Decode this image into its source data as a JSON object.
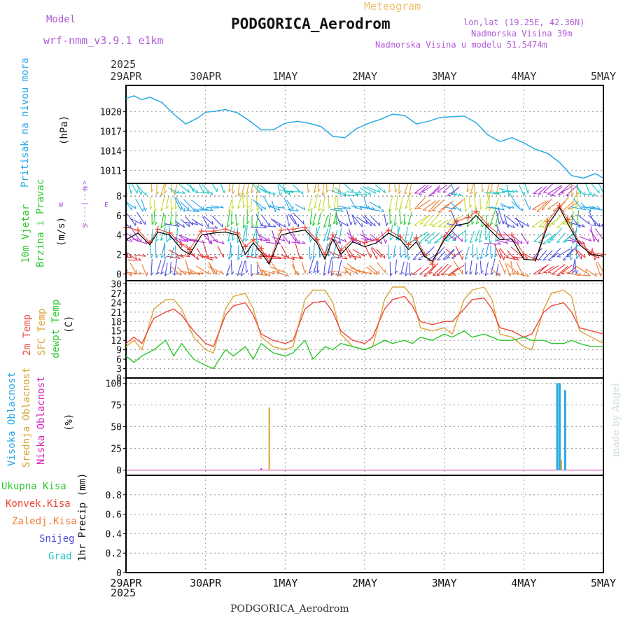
{
  "header": {
    "model_label": "Model",
    "model_name": "wrf-nmm_v3.9.1  e1km",
    "meteogram_label": "Meteogram",
    "station_title": "PODGORICA_Aerodrom",
    "lonlat": "lon,lat (19.25E, 42.36N)",
    "elevation": "Nadmorska Visina 39m",
    "model_elevation": "Nadmorska Visina u modelu 51.5474m",
    "footer_title": "PODGORICA_Aerodrom",
    "credit": "made by Angel"
  },
  "time_axis": {
    "year": "2025",
    "dates": [
      "29APR",
      "30APR",
      "1MAY",
      "2MAY",
      "3MAY",
      "4MAY",
      "5MAY"
    ]
  },
  "panel_labels": {
    "pressure": {
      "title": "Pritisak na nivou mora",
      "unit": "(hPa)"
    },
    "wind": {
      "title1": "10m Vjetar",
      "title2": "Brzina i Pravac",
      "unit": "(m/s)",
      "compass_top": "N",
      "compass_left": "W",
      "compass_right": "E",
      "compass_bottom": "S",
      "compass_axis": "<----|---->"
    },
    "temp": {
      "t2m": "2m Temp",
      "sfc": "SFC Temp",
      "dew": "dewpt Temp",
      "unit": "(C)"
    },
    "cloud": {
      "high": "Visoka Oblacnost",
      "mid": "Srednja Oblacnost",
      "low": "Niska Oblacnost",
      "unit": "(%)"
    },
    "precip": {
      "unit": "1hr Precip (mm)"
    }
  },
  "precip_legend": [
    "Ukupna Kisa",
    "Konvek.Kisa",
    "Zaledj.Kisa",
    "Snijeg",
    "Grad"
  ],
  "colors": {
    "pressure": "#2aa9e6",
    "wind_speed": "#000000",
    "wind_gust": "#e8422f",
    "t2m": "#ef4a3c",
    "sfc": "#dba63a",
    "dewpoint": "#2ec92e",
    "high_cloud": "#2aa9e6",
    "mid_cloud": "#d4a530",
    "low_cloud": "#d423b4",
    "rain": "#2ec92e",
    "conv": "#e8422f",
    "frz": "#f07a30",
    "snow": "#5050e0",
    "hail": "#1ec6c6",
    "title_purple": "#b05ad6",
    "meteogram_gold": "#f0c070"
  },
  "chart_data": [
    {
      "type": "line",
      "name": "pressure",
      "ylabel": "Pritisak na nivou mora (hPa)",
      "x_unit": "days since 29APR 00UTC",
      "ylim": [
        1009,
        1024
      ],
      "yticks": [
        1011,
        1014,
        1017,
        1020
      ],
      "grid": true,
      "x": [
        0,
        0.1,
        0.2,
        0.3,
        0.45,
        0.6,
        0.75,
        0.9,
        1.0,
        1.1,
        1.25,
        1.4,
        1.55,
        1.7,
        1.85,
        2.0,
        2.15,
        2.3,
        2.45,
        2.6,
        2.75,
        2.9,
        3.05,
        3.2,
        3.35,
        3.5,
        3.65,
        3.8,
        3.95,
        4.1,
        4.25,
        4.4,
        4.55,
        4.7,
        4.85,
        5.0,
        5.15,
        5.3,
        5.45,
        5.6,
        5.75,
        5.9,
        6.0
      ],
      "y": [
        1022.0,
        1022.4,
        1021.8,
        1022.2,
        1021.4,
        1019.6,
        1018.1,
        1019.0,
        1019.9,
        1020.0,
        1020.3,
        1019.8,
        1018.6,
        1017.2,
        1017.2,
        1018.2,
        1018.5,
        1018.2,
        1017.7,
        1016.2,
        1016.0,
        1017.4,
        1018.2,
        1018.8,
        1019.6,
        1019.4,
        1018.1,
        1018.5,
        1019.1,
        1019.2,
        1019.3,
        1018.3,
        1016.4,
        1015.4,
        1016.0,
        1015.2,
        1014.2,
        1013.6,
        1012.2,
        1010.2,
        1009.8,
        1010.5,
        1009.8
      ]
    },
    {
      "type": "line",
      "name": "wind",
      "ylabel": "10m Vjetar Brzina i Pravac (m/s)",
      "x_unit": "days since 29APR 00UTC",
      "ylim": [
        -0.7,
        9.3
      ],
      "yticks": [
        0,
        2,
        4,
        6,
        8
      ],
      "grid": true,
      "series": [
        {
          "name": "speed",
          "x": [
            0,
            0.15,
            0.3,
            0.4,
            0.55,
            0.7,
            0.8,
            0.95,
            1.1,
            1.25,
            1.4,
            1.5,
            1.6,
            1.7,
            1.8,
            1.95,
            2.1,
            2.25,
            2.4,
            2.5,
            2.6,
            2.7,
            2.85,
            3.0,
            3.15,
            3.3,
            3.45,
            3.55,
            3.65,
            3.75,
            3.85,
            4.0,
            4.15,
            4.3,
            4.4,
            4.55,
            4.7,
            4.85,
            5.0,
            5.15,
            5.3,
            5.45,
            5.55,
            5.7,
            5.85,
            6.0
          ],
          "y": [
            3.5,
            4.2,
            3.0,
            4.3,
            4.0,
            2.5,
            2.0,
            4.0,
            4.2,
            4.3,
            4.0,
            2.0,
            3.2,
            2.2,
            1.0,
            4.0,
            4.3,
            4.5,
            3.2,
            1.5,
            3.6,
            2.0,
            3.3,
            2.8,
            3.2,
            4.2,
            3.5,
            2.5,
            3.3,
            1.8,
            1.3,
            3.5,
            5.0,
            5.2,
            6.0,
            4.7,
            3.5,
            3.6,
            1.5,
            1.4,
            5.0,
            6.8,
            5.2,
            3.0,
            2.0,
            1.8
          ]
        },
        {
          "name": "gust",
          "x": [
            0,
            0.15,
            0.3,
            0.4,
            0.55,
            0.7,
            0.8,
            0.95,
            1.1,
            1.25,
            1.4,
            1.5,
            1.6,
            1.7,
            1.8,
            1.95,
            2.1,
            2.25,
            2.4,
            2.5,
            2.6,
            2.7,
            2.85,
            3.0,
            3.15,
            3.3,
            3.45,
            3.55,
            3.65,
            3.75,
            3.85,
            4.0,
            4.15,
            4.3,
            4.4,
            4.55,
            4.7,
            4.85,
            5.0,
            5.15,
            5.3,
            5.45,
            5.55,
            5.7,
            5.85,
            6.0
          ],
          "y": [
            4.8,
            4.5,
            3.2,
            4.6,
            4.2,
            3.0,
            2.5,
            4.4,
            4.4,
            4.6,
            4.2,
            2.8,
            3.5,
            2.6,
            1.2,
            4.5,
            4.6,
            4.8,
            3.5,
            2.0,
            4.0,
            2.4,
            3.6,
            3.2,
            3.5,
            4.5,
            3.8,
            3.0,
            3.7,
            2.0,
            1.0,
            3.8,
            5.4,
            5.8,
            6.4,
            5.0,
            4.0,
            4.0,
            2.0,
            1.5,
            5.4,
            7.0,
            5.6,
            3.2,
            2.2,
            2.0
          ]
        }
      ]
    },
    {
      "type": "line",
      "name": "temperature",
      "ylabel": "Temp (C)",
      "x_unit": "days since 29APR 00UTC",
      "ylim": [
        0,
        31
      ],
      "yticks": [
        0,
        3,
        6,
        9,
        12,
        15,
        18,
        21,
        24,
        27,
        30
      ],
      "grid": true,
      "series": [
        {
          "name": "2m Temp",
          "x": [
            0,
            0.1,
            0.2,
            0.35,
            0.5,
            0.6,
            0.7,
            0.85,
            1.0,
            1.1,
            1.25,
            1.35,
            1.5,
            1.6,
            1.7,
            1.85,
            2.0,
            2.1,
            2.25,
            2.35,
            2.5,
            2.6,
            2.7,
            2.85,
            3.0,
            3.1,
            3.25,
            3.35,
            3.5,
            3.6,
            3.7,
            3.85,
            4.0,
            4.1,
            4.25,
            4.35,
            4.5,
            4.6,
            4.7,
            4.85,
            5.0,
            5.1,
            5.25,
            5.35,
            5.5,
            5.6,
            5.7,
            5.85,
            6.0
          ],
          "y": [
            11,
            13,
            11,
            19,
            21,
            22,
            20,
            15,
            11,
            10,
            20,
            23,
            24,
            20,
            14,
            12,
            11,
            12,
            22,
            24,
            24.5,
            21,
            15,
            12,
            11,
            13,
            22,
            25,
            26,
            23,
            18,
            17,
            18,
            18,
            22,
            25,
            25.5,
            22,
            16,
            15,
            13,
            14,
            21,
            23,
            24,
            21,
            16,
            15,
            14
          ]
        },
        {
          "name": "SFC Temp",
          "x": [
            0,
            0.1,
            0.2,
            0.35,
            0.5,
            0.6,
            0.7,
            0.85,
            1.0,
            1.1,
            1.25,
            1.35,
            1.5,
            1.6,
            1.7,
            1.85,
            2.0,
            2.1,
            2.25,
            2.35,
            2.5,
            2.6,
            2.7,
            2.85,
            3.0,
            3.1,
            3.25,
            3.35,
            3.5,
            3.6,
            3.7,
            3.85,
            4.0,
            4.1,
            4.25,
            4.35,
            4.5,
            4.6,
            4.7,
            4.85,
            5.0,
            5.1,
            5.25,
            5.35,
            5.5,
            5.6,
            5.7,
            5.85,
            6.0
          ],
          "y": [
            10,
            12,
            9,
            22,
            25,
            25,
            22,
            13,
            9,
            8,
            22,
            26,
            27,
            22,
            13,
            10,
            9,
            10,
            25,
            28,
            28,
            24,
            14,
            10,
            9,
            10,
            25,
            29,
            29,
            26,
            16,
            15,
            16,
            14,
            25,
            28,
            29,
            25,
            14,
            13,
            10,
            9,
            22,
            27,
            28,
            26,
            15,
            13,
            11
          ]
        },
        {
          "name": "dewpt Temp",
          "x": [
            0,
            0.1,
            0.2,
            0.35,
            0.5,
            0.6,
            0.7,
            0.85,
            1.0,
            1.1,
            1.25,
            1.35,
            1.5,
            1.6,
            1.7,
            1.85,
            2.0,
            2.1,
            2.25,
            2.35,
            2.5,
            2.6,
            2.7,
            2.85,
            3.0,
            3.1,
            3.25,
            3.35,
            3.5,
            3.6,
            3.7,
            3.85,
            4.0,
            4.1,
            4.25,
            4.35,
            4.5,
            4.6,
            4.7,
            4.85,
            5.0,
            5.1,
            5.25,
            5.35,
            5.5,
            5.6,
            5.7,
            5.85,
            6.0
          ],
          "y": [
            7,
            5,
            7,
            9,
            12,
            7,
            11,
            6,
            4,
            3,
            9,
            7,
            10,
            6,
            11,
            8,
            7,
            8,
            12,
            6,
            10,
            9,
            11,
            10,
            9,
            10,
            12,
            11,
            12,
            11,
            13,
            12,
            14,
            13,
            15,
            13,
            14,
            13,
            12,
            12,
            13,
            12,
            12,
            11,
            11,
            12,
            11,
            10,
            10
          ]
        }
      ]
    },
    {
      "type": "bar",
      "name": "cloud",
      "ylabel": "Oblacnost (%)",
      "x_unit": "days since 29APR 00UTC",
      "ylim": [
        -6,
        106
      ],
      "yticks": [
        0,
        25,
        50,
        75,
        100
      ],
      "grid": true,
      "series": [
        {
          "name": "Visoka Oblacnost",
          "x": [
            5.42,
            5.45,
            5.52
          ],
          "values": [
            100,
            100,
            92
          ]
        },
        {
          "name": "Srednja Oblacnost",
          "x": [
            1.8,
            5.47
          ],
          "values": [
            72,
            12
          ]
        },
        {
          "name": "Niska Oblacnost",
          "x": [
            1.7
          ],
          "values": [
            2
          ]
        }
      ]
    },
    {
      "type": "bar",
      "name": "precip",
      "ylabel": "1hr Precip (mm)",
      "x_unit": "days since 29APR 00UTC",
      "ylim": [
        0,
        1
      ],
      "yticks": [
        0,
        0.2,
        0.4,
        0.6,
        0.8
      ],
      "grid": true,
      "series": [
        {
          "name": "Ukupna Kisa",
          "x": [],
          "values": []
        }
      ]
    }
  ]
}
